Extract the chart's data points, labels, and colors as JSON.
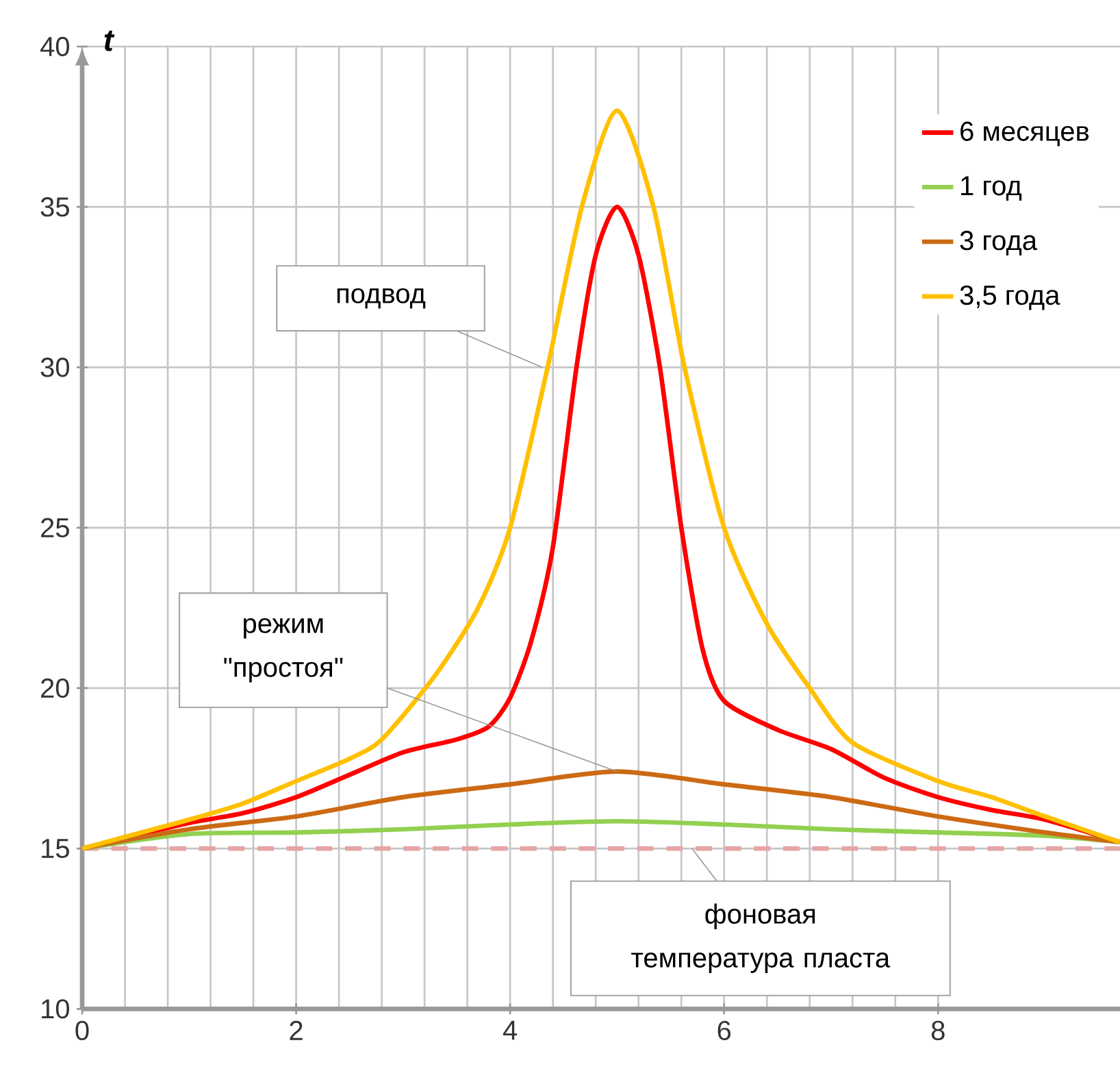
{
  "chart_data": {
    "type": "line",
    "ylabel": "t",
    "xlim": [
      0,
      9.7
    ],
    "ylim": [
      10,
      40
    ],
    "xticks": [
      0,
      2,
      4,
      6,
      8
    ],
    "yticks": [
      10,
      15,
      20,
      25,
      30,
      35,
      40
    ],
    "grid": true,
    "legend": "top right",
    "line_style": "solid",
    "marker": "none",
    "series": [
      {
        "name": "6 месяцев",
        "color": "#ff0000",
        "x": [
          0,
          0.5,
          1,
          1.5,
          2,
          2.5,
          3,
          3.5,
          3.8,
          4,
          4.2,
          4.4,
          4.62,
          4.8,
          5,
          5.2,
          5.4,
          5.6,
          5.8,
          6,
          6.5,
          7,
          7.5,
          8,
          8.5,
          9,
          9.7
        ],
        "values": [
          15,
          15.4,
          15.8,
          16.1,
          16.6,
          17.3,
          18.0,
          18.4,
          18.8,
          19.7,
          21.5,
          24.4,
          30,
          33.5,
          35,
          33.5,
          30,
          25,
          21.2,
          19.6,
          18.7,
          18.1,
          17.2,
          16.6,
          16.2,
          15.9,
          15.2
        ]
      },
      {
        "name": "1 год",
        "color": "#92d050",
        "x": [
          0,
          1,
          2,
          3,
          4,
          5,
          6,
          7,
          8,
          9,
          9.7
        ],
        "values": [
          15,
          15.45,
          15.5,
          15.6,
          15.75,
          15.85,
          15.75,
          15.6,
          15.5,
          15.4,
          15.2
        ]
      },
      {
        "name": "3 года",
        "color": "#cc6a14",
        "x": [
          0,
          1,
          2,
          3,
          4,
          5,
          6,
          7,
          8,
          9,
          9.7
        ],
        "values": [
          15,
          15.6,
          16.0,
          16.6,
          17.0,
          17.4,
          17.0,
          16.6,
          16.0,
          15.5,
          15.2
        ]
      },
      {
        "name": "3,5 года",
        "color": "#ffc000",
        "x": [
          0,
          0.5,
          1,
          1.5,
          2,
          2.5,
          2.8,
          3.3,
          3.7,
          4,
          4.35,
          4.67,
          5,
          5.34,
          5.63,
          6,
          6.4,
          6.8,
          7.2,
          8,
          8.5,
          9,
          9.7
        ],
        "values": [
          15,
          15.45,
          15.9,
          16.4,
          17.1,
          17.8,
          18.4,
          20.4,
          22.5,
          25,
          30,
          35,
          38,
          35,
          30,
          25,
          22,
          20,
          18.3,
          17.1,
          16.6,
          16.0,
          15.2
        ]
      }
    ],
    "ref_lines": [
      {
        "axis": "y",
        "value": 15,
        "color": "#e6a5a5",
        "line_style": "dashed"
      }
    ],
    "annotations": [
      {
        "text": "подвод",
        "x": 4.3,
        "y": 30
      },
      {
        "text": "режим \"простоя\"",
        "x": 5,
        "y": 17.4
      },
      {
        "text": "фоновая температура пласта",
        "x": 5.7,
        "y": 15
      }
    ]
  }
}
